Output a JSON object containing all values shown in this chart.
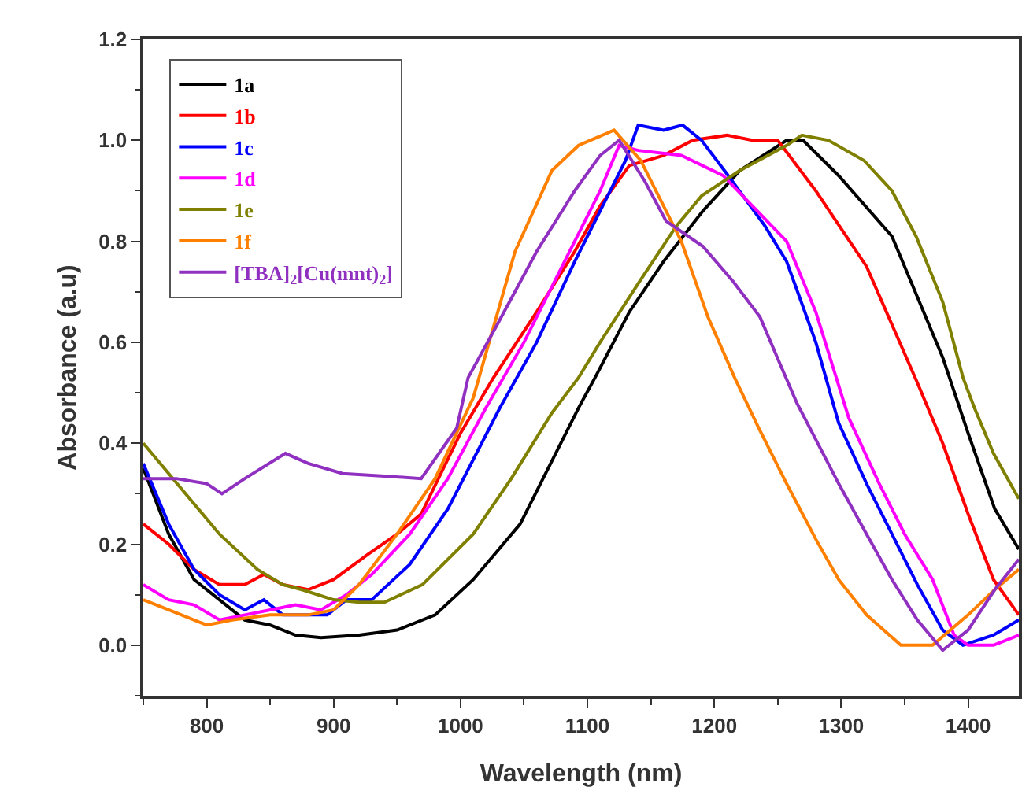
{
  "chart_data": {
    "type": "line",
    "xlabel": "Wavelength (nm)",
    "ylabel": "Absorbance (a.u)",
    "xlim": [
      750,
      1440
    ],
    "ylim": [
      -0.1,
      1.2
    ],
    "xticks": [
      800,
      900,
      1000,
      1100,
      1200,
      1300,
      1400
    ],
    "yticks": [
      {
        "value": 0,
        "label": "0.0"
      },
      {
        "value": 0.2,
        "label": "0.2"
      },
      {
        "value": 0.4,
        "label": "0.4"
      },
      {
        "value": 0.6,
        "label": "0.6"
      },
      {
        "value": 0.8,
        "label": "0.8"
      },
      {
        "value": 1,
        "label": "1.0"
      },
      {
        "value": 1.2,
        "label": "1.2"
      }
    ],
    "grid": false,
    "legend": "top left",
    "marker": "none",
    "line_style": "solid",
    "series": [
      {
        "name": "1a",
        "color": "#000000",
        "x": [
          750,
          770,
          790,
          810,
          830,
          850,
          870,
          890,
          920,
          950,
          980,
          1010,
          1047,
          1093,
          1106,
          1133,
          1160,
          1191,
          1220,
          1257,
          1270,
          1298,
          1340,
          1380,
          1400,
          1421,
          1440
        ],
        "values": [
          0.35,
          0.22,
          0.13,
          0.09,
          0.05,
          0.04,
          0.02,
          0.015,
          0.02,
          0.03,
          0.06,
          0.13,
          0.24,
          0.47,
          0.53,
          0.66,
          0.76,
          0.86,
          0.94,
          1.0,
          1.0,
          0.93,
          0.81,
          0.57,
          0.42,
          0.27,
          0.19
        ]
      },
      {
        "name": "1b",
        "color": "#ff0000",
        "x": [
          750,
          770,
          790,
          810,
          830,
          845,
          860,
          880,
          900,
          927,
          950,
          969,
          1000,
          1026,
          1060,
          1090,
          1110,
          1133,
          1160,
          1183,
          1210,
          1230,
          1250,
          1280,
          1320,
          1360,
          1380,
          1400,
          1420,
          1440
        ],
        "values": [
          0.24,
          0.2,
          0.15,
          0.12,
          0.12,
          0.14,
          0.12,
          0.11,
          0.13,
          0.18,
          0.22,
          0.26,
          0.42,
          0.53,
          0.66,
          0.78,
          0.87,
          0.95,
          0.97,
          1.0,
          1.01,
          1.0,
          1.0,
          0.9,
          0.75,
          0.52,
          0.4,
          0.26,
          0.13,
          0.06
        ]
      },
      {
        "name": "1c",
        "color": "#0000ff",
        "x": [
          750,
          770,
          790,
          810,
          830,
          845,
          860,
          880,
          895,
          910,
          930,
          960,
          990,
          1031,
          1060,
          1090,
          1110,
          1130,
          1140,
          1160,
          1175,
          1190,
          1211,
          1240,
          1257,
          1280,
          1298,
          1320,
          1340,
          1360,
          1380,
          1396,
          1420,
          1440
        ],
        "values": [
          0.36,
          0.24,
          0.15,
          0.1,
          0.07,
          0.09,
          0.06,
          0.06,
          0.06,
          0.09,
          0.09,
          0.16,
          0.27,
          0.47,
          0.6,
          0.76,
          0.86,
          0.96,
          1.03,
          1.02,
          1.03,
          1.0,
          0.93,
          0.83,
          0.76,
          0.6,
          0.44,
          0.32,
          0.22,
          0.12,
          0.03,
          0,
          0.02,
          0.05
        ]
      },
      {
        "name": "1d",
        "color": "#ff00ff",
        "x": [
          750,
          770,
          790,
          810,
          830,
          850,
          870,
          890,
          910,
          930,
          960,
          990,
          1020,
          1050,
          1080,
          1110,
          1125,
          1140,
          1174,
          1207,
          1230,
          1257,
          1280,
          1306,
          1330,
          1350,
          1372,
          1389,
          1400,
          1420,
          1440
        ],
        "values": [
          0.12,
          0.09,
          0.08,
          0.05,
          0.06,
          0.07,
          0.08,
          0.07,
          0.1,
          0.14,
          0.22,
          0.33,
          0.47,
          0.6,
          0.75,
          0.9,
          0.99,
          0.98,
          0.97,
          0.93,
          0.87,
          0.8,
          0.66,
          0.45,
          0.32,
          0.22,
          0.13,
          0.02,
          0,
          0,
          0.02
        ]
      },
      {
        "name": "1e",
        "color": "#808000",
        "x": [
          750,
          780,
          810,
          840,
          860,
          875,
          900,
          920,
          940,
          970,
          1010,
          1040,
          1072,
          1093,
          1110,
          1141,
          1170,
          1190,
          1220,
          1257,
          1269,
          1290,
          1318,
          1340,
          1359,
          1380,
          1396,
          1405,
          1420,
          1440
        ],
        "values": [
          0.4,
          0.31,
          0.22,
          0.15,
          0.12,
          0.11,
          0.09,
          0.085,
          0.085,
          0.12,
          0.22,
          0.33,
          0.46,
          0.53,
          0.6,
          0.72,
          0.83,
          0.89,
          0.94,
          0.99,
          1.01,
          1.0,
          0.96,
          0.9,
          0.81,
          0.68,
          0.53,
          0.47,
          0.38,
          0.29
        ]
      },
      {
        "name": "1f",
        "color": "#ff8000",
        "x": [
          750,
          770,
          800,
          820,
          850,
          880,
          900,
          920,
          950,
          980,
          1010,
          1043,
          1072,
          1093,
          1121,
          1142,
          1174,
          1195,
          1216,
          1235,
          1257,
          1280,
          1298,
          1320,
          1347,
          1372,
          1400,
          1421,
          1440
        ],
        "values": [
          0.09,
          0.07,
          0.04,
          0.05,
          0.06,
          0.06,
          0.07,
          0.12,
          0.22,
          0.33,
          0.49,
          0.78,
          0.94,
          0.99,
          1.02,
          0.96,
          0.8,
          0.65,
          0.53,
          0.43,
          0.32,
          0.21,
          0.13,
          0.06,
          0,
          0,
          0.06,
          0.11,
          0.15
        ]
      },
      {
        "name": "[TBA]$_{2}$[Cu(mnt)$_{2}$]",
        "color": "#9030c0",
        "x": [
          750,
          776,
          800,
          812,
          830,
          862,
          880,
          907,
          940,
          969,
          997,
          1006,
          1030,
          1060,
          1090,
          1110,
          1125,
          1145,
          1162,
          1191,
          1215,
          1236,
          1253,
          1265,
          1298,
          1320,
          1340,
          1360,
          1380,
          1400,
          1421,
          1440
        ],
        "values": [
          0.33,
          0.33,
          0.32,
          0.3,
          0.33,
          0.38,
          0.36,
          0.34,
          0.335,
          0.33,
          0.43,
          0.53,
          0.64,
          0.78,
          0.9,
          0.97,
          1.0,
          0.92,
          0.84,
          0.79,
          0.72,
          0.65,
          0.55,
          0.48,
          0.32,
          0.22,
          0.13,
          0.05,
          -0.01,
          0.03,
          0.11,
          0.17
        ]
      }
    ]
  }
}
